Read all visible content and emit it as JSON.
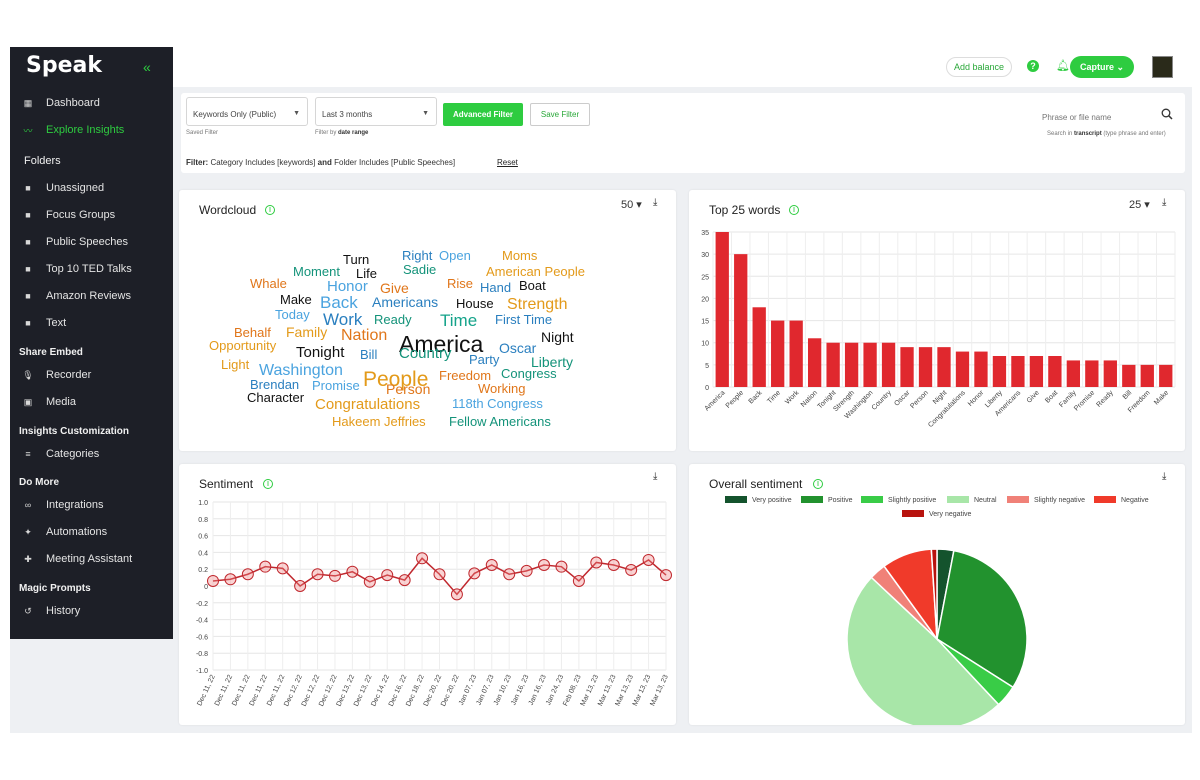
{
  "app": {
    "logo": "Speak"
  },
  "sidebar": {
    "items": [
      {
        "label": "Dashboard",
        "name": "sidebar-item-dashboard",
        "icon": "grid-icon",
        "glyph": "▦",
        "active": false
      },
      {
        "label": "Explore Insights",
        "name": "sidebar-item-explore-insights",
        "icon": "trend-icon",
        "glyph": "〰",
        "active": true
      },
      {
        "label": "Unassigned",
        "name": "sidebar-item-unassigned",
        "icon": "folder-icon",
        "glyph": "■",
        "active": false
      },
      {
        "label": "Focus Groups",
        "name": "sidebar-item-focus-groups",
        "icon": "folder-icon",
        "glyph": "■",
        "active": false
      },
      {
        "label": "Public Speeches",
        "name": "sidebar-item-public-speeches",
        "icon": "folder-icon",
        "glyph": "■",
        "active": false
      },
      {
        "label": "Top 10 TED Talks",
        "name": "sidebar-item-top-10-ted-talks",
        "icon": "folder-icon",
        "glyph": "■",
        "active": false
      },
      {
        "label": "Amazon Reviews",
        "name": "sidebar-item-amazon-reviews",
        "icon": "folder-icon",
        "glyph": "■",
        "active": false
      },
      {
        "label": "Text",
        "name": "sidebar-item-text",
        "icon": "folder-icon",
        "glyph": "■",
        "active": false
      },
      {
        "label": "Recorder",
        "name": "sidebar-item-recorder",
        "icon": "mic-icon",
        "glyph": "🎙",
        "active": false
      },
      {
        "label": "Media",
        "name": "sidebar-item-media",
        "icon": "media-icon",
        "glyph": "▣",
        "active": false
      },
      {
        "label": "Categories",
        "name": "sidebar-item-categories",
        "icon": "list-icon",
        "glyph": "≡",
        "active": false
      },
      {
        "label": "Integrations",
        "name": "sidebar-item-integrations",
        "icon": "link-icon",
        "glyph": "∞",
        "active": false
      },
      {
        "label": "Automations",
        "name": "sidebar-item-automations",
        "icon": "sparkle-icon",
        "glyph": "✦",
        "active": false
      },
      {
        "label": "Meeting Assistant",
        "name": "sidebar-item-meeting-assistant",
        "icon": "assistant-icon",
        "glyph": "✚",
        "active": false
      },
      {
        "label": "History",
        "name": "sidebar-item-history",
        "icon": "history-icon",
        "glyph": "↺",
        "active": false
      }
    ],
    "sections": {
      "folders": "Folders",
      "share_embed": "Share Embed",
      "insights_customization": "Insights Customization",
      "do_more": "Do More",
      "magic_prompts": "Magic Prompts"
    }
  },
  "header": {
    "add_balance": "Add balance",
    "help": "?",
    "capture": "Capture ⌄"
  },
  "filters": {
    "saved_filter_value": "Keywords Only (Public)",
    "saved_filter_hint": "Saved Filter",
    "date_value": "Last 3 months",
    "date_hint_prefix": "Filter by",
    "date_hint_bold": "date range",
    "advanced": "Advanced Filter",
    "save": "Save Filter",
    "search_placeholder": "Phrase or file name",
    "search_hint_prefix": "Search in",
    "search_hint_bold": "transcript",
    "search_hint_suffix": "(type phrase and enter)",
    "filter_label": "Filter:",
    "filter_text_1": "Category Includes [keywords]",
    "filter_and": "and",
    "filter_text_2": "Folder Includes [Public Speeches]",
    "reset": "Reset"
  },
  "wordcloud": {
    "title": "Wordcloud",
    "count": "50 ▾",
    "words": [
      {
        "t": "Turn",
        "c": "#111111",
        "s": 13
      },
      {
        "t": "Right",
        "c": "#2a7fbf",
        "s": 13
      },
      {
        "t": "Open",
        "c": "#4aa3df",
        "s": 13
      },
      {
        "t": "Moms",
        "c": "#e39a1a",
        "s": 13
      },
      {
        "t": "Moment",
        "c": "#14937a",
        "s": 13
      },
      {
        "t": "Life",
        "c": "#111111",
        "s": 13
      },
      {
        "t": "Sadie",
        "c": "#14937a",
        "s": 13
      },
      {
        "t": "American People",
        "c": "#e39a1a",
        "s": 13
      },
      {
        "t": "Whale",
        "c": "#e0761a",
        "s": 13
      },
      {
        "t": "Honor",
        "c": "#4aa3df",
        "s": 15
      },
      {
        "t": "Give",
        "c": "#e0761a",
        "s": 14
      },
      {
        "t": "Rise",
        "c": "#e0761a",
        "s": 13
      },
      {
        "t": "Hand",
        "c": "#2a7fbf",
        "s": 13
      },
      {
        "t": "Boat",
        "c": "#111111",
        "s": 13
      },
      {
        "t": "Make",
        "c": "#111111",
        "s": 13
      },
      {
        "t": "Back",
        "c": "#4aa3df",
        "s": 17
      },
      {
        "t": "Americans",
        "c": "#2a7fbf",
        "s": 14
      },
      {
        "t": "House",
        "c": "#111111",
        "s": 13
      },
      {
        "t": "Strength",
        "c": "#e39a1a",
        "s": 16
      },
      {
        "t": "Today",
        "c": "#4aa3df",
        "s": 13
      },
      {
        "t": "Work",
        "c": "#2a7fbf",
        "s": 17
      },
      {
        "t": "Ready",
        "c": "#14937a",
        "s": 13
      },
      {
        "t": "Time",
        "c": "#14a38a",
        "s": 17
      },
      {
        "t": "First Time",
        "c": "#2a7fbf",
        "s": 13
      },
      {
        "t": "Behalf",
        "c": "#e0761a",
        "s": 13
      },
      {
        "t": "Family",
        "c": "#e39a1a",
        "s": 14
      },
      {
        "t": "Nation",
        "c": "#e0761a",
        "s": 16
      },
      {
        "t": "America",
        "c": "#111111",
        "s": 23
      },
      {
        "t": "Night",
        "c": "#111111",
        "s": 14
      },
      {
        "t": "Opportunity",
        "c": "#e39a1a",
        "s": 13
      },
      {
        "t": "Tonight",
        "c": "#111111",
        "s": 15
      },
      {
        "t": "Bill",
        "c": "#2a7fbf",
        "s": 13
      },
      {
        "t": "Country",
        "c": "#14937a",
        "s": 15
      },
      {
        "t": "Oscar",
        "c": "#2a7fbf",
        "s": 14
      },
      {
        "t": "Party",
        "c": "#2a7fbf",
        "s": 13
      },
      {
        "t": "Liberty",
        "c": "#14937a",
        "s": 14
      },
      {
        "t": "Light",
        "c": "#e39a1a",
        "s": 13
      },
      {
        "t": "Washington",
        "c": "#4aa3df",
        "s": 16
      },
      {
        "t": "People",
        "c": "#e39a1a",
        "s": 21
      },
      {
        "t": "Freedom",
        "c": "#e0761a",
        "s": 13
      },
      {
        "t": "Congress",
        "c": "#14937a",
        "s": 13
      },
      {
        "t": "Brendan",
        "c": "#2a7fbf",
        "s": 13
      },
      {
        "t": "Promise",
        "c": "#4aa3df",
        "s": 13
      },
      {
        "t": "Person",
        "c": "#e0761a",
        "s": 14
      },
      {
        "t": "Working",
        "c": "#e0761a",
        "s": 13
      },
      {
        "t": "Character",
        "c": "#111111",
        "s": 13
      },
      {
        "t": "Congratulations",
        "c": "#e39a1a",
        "s": 15
      },
      {
        "t": "118th Congress",
        "c": "#4aa3df",
        "s": 13
      },
      {
        "t": "Hakeem Jeffries",
        "c": "#e39a1a",
        "s": 13
      },
      {
        "t": "Fellow Americans",
        "c": "#14937a",
        "s": 13
      }
    ]
  },
  "top_words": {
    "title": "Top 25 words",
    "count": "25 ▾"
  },
  "sentiment": {
    "title": "Sentiment"
  },
  "overall": {
    "title": "Overall sentiment"
  },
  "colors": {
    "accent": "#2ecc40",
    "sidebar_bg": "#1d1f27",
    "bar": "#e0282e",
    "line": "#c0282e"
  },
  "chart_data": [
    {
      "type": "bar",
      "title": "Top 25 words",
      "categories": [
        "America",
        "People",
        "Back",
        "Time",
        "Work",
        "Nation",
        "Tonight",
        "Strength",
        "Washington",
        "Country",
        "Oscar",
        "Person",
        "Night",
        "Congratulations",
        "Honor",
        "Liberty",
        "Americans",
        "Give",
        "Boat",
        "Family",
        "Promise",
        "Ready",
        "Bill",
        "Freedom",
        "Make"
      ],
      "values": [
        35,
        30,
        18,
        15,
        15,
        11,
        10,
        10,
        10,
        10,
        9,
        9,
        9,
        8,
        8,
        7,
        7,
        7,
        7,
        6,
        6,
        6,
        5,
        5,
        5
      ],
      "ylim": [
        0,
        35
      ],
      "yticks": [
        0,
        5,
        10,
        15,
        20,
        25,
        30,
        35
      ],
      "grid": true
    },
    {
      "type": "line",
      "title": "Sentiment",
      "x": [
        "Dec 11, 22",
        "Dec 11, 22",
        "Dec 11, 22",
        "Dec 11, 22",
        "Dec 11, 22",
        "Dec 12, 22",
        "Dec 12, 22",
        "Dec 12, 22",
        "Dec 13, 22",
        "Dec 13, 22",
        "Dec 14, 22",
        "Dec 16, 22",
        "Dec 18, 22",
        "Dec 20, 22",
        "Dec 20, 22",
        "Jan 07, 23",
        "Jan 07, 23",
        "Jan 10, 23",
        "Jan 16, 23",
        "Jan 16, 23",
        "Jan 24, 23",
        "Feb 08, 23",
        "Mar 13, 23",
        "Mar 13, 23",
        "Mar 13, 23",
        "Mar 13, 23",
        "Mar 13, 23"
      ],
      "values": [
        0.06,
        0.08,
        0.14,
        0.23,
        0.21,
        0.0,
        0.14,
        0.12,
        0.17,
        0.05,
        0.13,
        0.07,
        0.33,
        0.14,
        -0.1,
        0.15,
        0.25,
        0.14,
        0.18,
        0.25,
        0.23,
        0.06,
        0.28,
        0.25,
        0.19,
        0.31,
        0.13
      ],
      "ylim": [
        -1.0,
        1.0
      ],
      "yticks": [
        1.0,
        0.8,
        0.6,
        0.4,
        0.2,
        0,
        -0.2,
        -0.4,
        -0.6,
        -0.8,
        -1.0
      ],
      "grid": true
    },
    {
      "type": "pie",
      "title": "Overall sentiment",
      "legend": "top",
      "slices": [
        {
          "label": "Very positive",
          "value": 3,
          "color": "#14532d"
        },
        {
          "label": "Positive",
          "value": 31,
          "color": "#22922e"
        },
        {
          "label": "Slightly positive",
          "value": 4,
          "color": "#39cc47"
        },
        {
          "label": "Neutral",
          "value": 49,
          "color": "#a8e6a8"
        },
        {
          "label": "Slightly negative",
          "value": 3,
          "color": "#f08178"
        },
        {
          "label": "Negative",
          "value": 9,
          "color": "#f03a2a"
        },
        {
          "label": "Very negative",
          "value": 1,
          "color": "#b8130e"
        }
      ]
    }
  ]
}
